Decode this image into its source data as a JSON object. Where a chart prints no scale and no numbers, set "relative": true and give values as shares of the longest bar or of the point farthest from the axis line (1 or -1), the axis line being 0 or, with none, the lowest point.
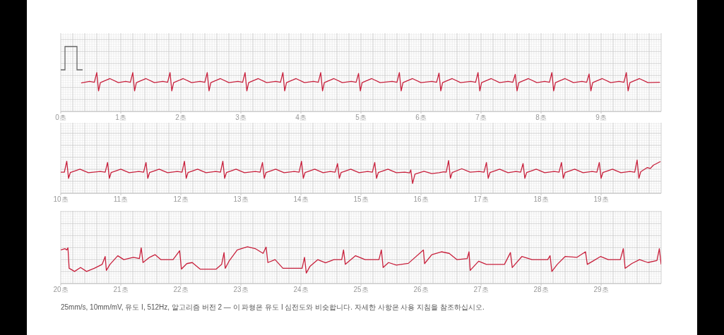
{
  "chart_data": [
    {
      "type": "line",
      "relative": true,
      "color": "#c8203c",
      "marker": "none",
      "line_style": "solid",
      "grid": true,
      "xlim": [
        0,
        10
      ],
      "xticks": [
        {
          "value": 0,
          "label": "0초"
        },
        {
          "value": 1,
          "label": "1초"
        },
        {
          "value": 2,
          "label": "2초"
        },
        {
          "value": 3,
          "label": "3초"
        },
        {
          "value": 4,
          "label": "4초"
        },
        {
          "value": 5,
          "label": "5초"
        },
        {
          "value": 6,
          "label": "6초"
        },
        {
          "value": 7,
          "label": "7초"
        },
        {
          "value": 8,
          "label": "8초"
        },
        {
          "value": 9,
          "label": "9초"
        }
      ],
      "x": [
        0.34,
        0.48,
        0.56,
        0.6,
        0.63,
        0.66,
        0.82,
        0.96,
        1.08,
        1.16,
        1.2,
        1.23,
        1.26,
        1.42,
        1.56,
        1.7,
        1.78,
        1.82,
        1.85,
        1.88,
        2.04,
        2.18,
        2.32,
        2.4,
        2.44,
        2.47,
        2.5,
        2.66,
        2.8,
        2.95,
        3.03,
        3.07,
        3.1,
        3.13,
        3.29,
        3.43,
        3.58,
        3.66,
        3.7,
        3.73,
        3.76,
        3.92,
        4.06,
        4.21,
        4.29,
        4.33,
        4.36,
        4.39,
        4.55,
        4.69,
        4.84,
        4.92,
        4.96,
        4.99,
        5.02,
        5.18,
        5.32,
        5.52,
        5.6,
        5.64,
        5.67,
        5.7,
        5.86,
        6.0,
        6.18,
        6.26,
        6.3,
        6.33,
        6.36,
        6.52,
        6.66,
        6.83,
        6.91,
        6.95,
        6.98,
        7.01,
        7.17,
        7.31,
        7.45,
        7.53,
        7.57,
        7.6,
        7.63,
        7.79,
        7.93,
        8.06,
        8.14,
        8.18,
        8.21,
        8.24,
        8.4,
        8.54,
        8.68,
        8.76,
        8.8,
        8.83,
        8.86,
        9.02,
        9.16,
        9.3,
        9.38,
        9.42,
        9.45,
        9.48,
        9.64,
        9.78,
        9.98
      ],
      "values": [
        0.43,
        0.52,
        0.47,
        1,
        0,
        0.45,
        0.67,
        0.45,
        0.52,
        0.47,
        1,
        0,
        0.45,
        0.67,
        0.45,
        0.52,
        0.47,
        1,
        0,
        0.45,
        0.67,
        0.45,
        0.52,
        0.47,
        1,
        0,
        0.45,
        0.67,
        0.45,
        0.52,
        0.47,
        1,
        0,
        0.45,
        0.67,
        0.45,
        0.52,
        0.47,
        1,
        0,
        0.45,
        0.67,
        0.45,
        0.52,
        0.47,
        1,
        0,
        0.45,
        0.67,
        0.45,
        0.52,
        0.47,
        0.95,
        0,
        0.45,
        0.67,
        0.45,
        0.52,
        0.47,
        1,
        0,
        0.45,
        0.67,
        0.45,
        0.52,
        0.47,
        0.97,
        0,
        0.45,
        0.67,
        0.45,
        0.52,
        0.47,
        1,
        0,
        0.45,
        0.67,
        0.45,
        0.52,
        0.47,
        0.9,
        0,
        0.45,
        0.67,
        0.45,
        0.52,
        0.47,
        1,
        0,
        0.45,
        0.67,
        0.45,
        0.52,
        0.47,
        0.92,
        0,
        0.45,
        0.67,
        0.45,
        0.52,
        0.47,
        1,
        0,
        0.45,
        0.67,
        0.45,
        0.47
      ]
    },
    {
      "type": "line",
      "relative": true,
      "color": "#c8203c",
      "marker": "none",
      "line_style": "solid",
      "grid": true,
      "xlim": [
        10,
        20
      ],
      "xticks": [
        {
          "value": 10,
          "label": "10초"
        },
        {
          "value": 11,
          "label": "11초"
        },
        {
          "value": 12,
          "label": "12초"
        },
        {
          "value": 13,
          "label": "13초"
        },
        {
          "value": 14,
          "label": "14초"
        },
        {
          "value": 15,
          "label": "15초"
        },
        {
          "value": 16,
          "label": "16초"
        },
        {
          "value": 17,
          "label": "17초"
        },
        {
          "value": 18,
          "label": "18초"
        },
        {
          "value": 19,
          "label": "19초"
        }
      ],
      "x": [
        10.0,
        10.06,
        10.1,
        10.13,
        10.16,
        10.32,
        10.46,
        10.66,
        10.74,
        10.78,
        10.81,
        10.84,
        11.0,
        11.14,
        11.3,
        11.38,
        11.42,
        11.45,
        11.48,
        11.64,
        11.78,
        11.94,
        12.02,
        12.06,
        12.09,
        12.12,
        12.28,
        12.42,
        12.58,
        12.66,
        12.7,
        12.73,
        12.76,
        12.92,
        13.06,
        13.24,
        13.32,
        13.36,
        13.39,
        13.42,
        13.58,
        13.72,
        13.89,
        13.97,
        14.01,
        14.04,
        14.07,
        14.23,
        14.37,
        14.49,
        14.57,
        14.61,
        14.64,
        14.67,
        14.83,
        14.97,
        15.11,
        15.19,
        15.23,
        15.26,
        15.29,
        15.45,
        15.59,
        15.73,
        15.81,
        15.83,
        15.86,
        15.9,
        16.05,
        16.18,
        16.3,
        16.38,
        16.42,
        16.46,
        16.49,
        16.52,
        16.68,
        16.82,
        16.97,
        17.05,
        17.09,
        17.12,
        17.15,
        17.31,
        17.45,
        17.58,
        17.66,
        17.7,
        17.73,
        17.76,
        17.92,
        18.06,
        18.22,
        18.3,
        18.34,
        18.37,
        18.4,
        18.56,
        18.7,
        18.85,
        18.93,
        18.97,
        19.0,
        19.03,
        19.19,
        19.33,
        19.48,
        19.56,
        19.6,
        19.63,
        19.66,
        19.77,
        19.82,
        19.87,
        19.99
      ],
      "values": [
        0.48,
        0.48,
        0.95,
        0.22,
        0.47,
        0.61,
        0.46,
        0.51,
        0.48,
        0.9,
        0.22,
        0.47,
        0.61,
        0.46,
        0.51,
        0.48,
        0.9,
        0.22,
        0.47,
        0.61,
        0.46,
        0.51,
        0.48,
        0.95,
        0.22,
        0.47,
        0.61,
        0.46,
        0.51,
        0.48,
        0.95,
        0.22,
        0.47,
        0.61,
        0.46,
        0.51,
        0.48,
        0.9,
        0.22,
        0.47,
        0.61,
        0.46,
        0.51,
        0.48,
        0.95,
        0.22,
        0.47,
        0.61,
        0.46,
        0.51,
        0.48,
        0.85,
        0.22,
        0.47,
        0.61,
        0.46,
        0.51,
        0.48,
        0.9,
        0.22,
        0.47,
        0.61,
        0.46,
        0.48,
        0.45,
        0.58,
        0,
        0.4,
        0.52,
        0.42,
        0.46,
        0.5,
        0.48,
        0.98,
        0.22,
        0.47,
        0.63,
        0.48,
        0.51,
        0.48,
        0.9,
        0.22,
        0.47,
        0.61,
        0.46,
        0.51,
        0.48,
        0.85,
        0.22,
        0.47,
        0.61,
        0.46,
        0.51,
        0.48,
        0.9,
        0.22,
        0.47,
        0.61,
        0.46,
        0.51,
        0.48,
        0.9,
        0.22,
        0.47,
        0.61,
        0.46,
        0.51,
        0.48,
        1,
        0.22,
        0.5,
        0.68,
        0.64,
        0.78,
        0.94
      ]
    },
    {
      "type": "line",
      "relative": true,
      "color": "#c8203c",
      "marker": "none",
      "line_style": "solid",
      "grid": true,
      "xlim": [
        20,
        30
      ],
      "xticks": [
        {
          "value": 20,
          "label": "20초"
        },
        {
          "value": 21,
          "label": "21초"
        },
        {
          "value": 22,
          "label": "22초"
        },
        {
          "value": 23,
          "label": "23초"
        },
        {
          "value": 24,
          "label": "24초"
        },
        {
          "value": 25,
          "label": "25초"
        },
        {
          "value": 26,
          "label": "26초"
        },
        {
          "value": 27,
          "label": "27초"
        },
        {
          "value": 28,
          "label": "28초"
        },
        {
          "value": 29,
          "label": "29초"
        }
      ],
      "x": [
        20.0,
        20.07,
        20.1,
        20.12,
        20.14,
        20.23,
        20.33,
        20.43,
        20.56,
        20.69,
        20.74,
        20.76,
        20.82,
        20.95,
        21.05,
        21.21,
        21.31,
        21.34,
        21.37,
        21.48,
        21.57,
        21.67,
        21.87,
        21.98,
        22.01,
        22.1,
        22.19,
        22.32,
        22.59,
        22.68,
        22.72,
        22.74,
        22.81,
        22.94,
        23.11,
        23.24,
        23.37,
        23.42,
        23.45,
        23.57,
        23.7,
        24.02,
        24.06,
        24.09,
        24.15,
        24.28,
        24.41,
        24.55,
        24.68,
        24.71,
        24.74,
        24.91,
        25.07,
        25.3,
        25.34,
        25.37,
        25.46,
        25.59,
        25.79,
        26.04,
        26.06,
        26.18,
        26.34,
        26.47,
        26.6,
        26.77,
        26.8,
        26.82,
        26.96,
        27.09,
        27.39,
        27.49,
        27.52,
        27.68,
        27.85,
        28.11,
        28.15,
        28.18,
        28.27,
        28.4,
        28.6,
        28.74,
        28.77,
        28.86,
        28.99,
        29.12,
        29.32,
        29.37,
        29.4,
        29.51,
        29.64,
        29.78,
        29.93,
        29.97,
        30.0
      ],
      "values": [
        0.88,
        0.93,
        0.88,
        0.96,
        0.18,
        0.06,
        0.21,
        0.06,
        0.18,
        0.33,
        0.63,
        0.1,
        0.33,
        0.66,
        0.51,
        0.6,
        0.55,
        0.96,
        0.4,
        0.6,
        0.7,
        0.51,
        0.51,
        0.85,
        0.15,
        0.36,
        0.4,
        0.15,
        0.15,
        0.33,
        0.78,
        0.18,
        0.48,
        0.88,
        1,
        0.93,
        0.75,
        0.99,
        0.4,
        0.51,
        0.18,
        0.18,
        0.6,
        0,
        0.25,
        0.51,
        0.39,
        0.51,
        0.51,
        0.88,
        0.33,
        0.66,
        0.51,
        0.51,
        0.88,
        0.21,
        0.4,
        0.3,
        0.37,
        0.88,
        0.36,
        0.7,
        0.81,
        0.75,
        0.51,
        0.55,
        0.81,
        0.1,
        0.45,
        0.33,
        0.33,
        0.78,
        0.21,
        0.63,
        0.51,
        0.51,
        0.66,
        0.06,
        0.33,
        0.63,
        0.6,
        0.81,
        0.33,
        0.45,
        0.63,
        0.51,
        0.51,
        0.93,
        0.18,
        0.36,
        0.51,
        0.4,
        0.48,
        0.93,
        0.33
      ],
      "annotations": [
        "25mm/s, 10mm/mV, 유도 I, 512Hz, 알고리즘 버전 2 — 이 파형은 유도 I 심전도와 비슷합니다. 자세한 사항은 사용 지침을 참조하십시오."
      ]
    }
  ]
}
